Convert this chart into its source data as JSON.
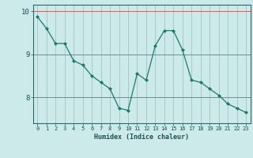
{
  "x": [
    0,
    1,
    2,
    3,
    4,
    5,
    6,
    7,
    8,
    9,
    10,
    11,
    12,
    13,
    14,
    15,
    16,
    17,
    18,
    19,
    20,
    21,
    22,
    23
  ],
  "y": [
    9.87,
    9.6,
    9.25,
    9.25,
    8.85,
    8.75,
    8.5,
    8.35,
    8.2,
    7.75,
    7.7,
    8.55,
    8.4,
    9.2,
    9.55,
    9.55,
    9.1,
    8.4,
    8.35,
    8.2,
    8.05,
    7.85,
    7.75,
    7.65
  ],
  "xlabel": "Humidex (Indice chaleur)",
  "ylabel": "",
  "ylim": [
    7.4,
    10.15
  ],
  "xlim": [
    -0.5,
    23.5
  ],
  "yticks": [
    8,
    9,
    10
  ],
  "xticks": [
    0,
    1,
    2,
    3,
    4,
    5,
    6,
    7,
    8,
    9,
    10,
    11,
    12,
    13,
    14,
    15,
    16,
    17,
    18,
    19,
    20,
    21,
    22,
    23
  ],
  "line_color": "#1a7a6e",
  "marker_color": "#1a7a6e",
  "bg_color": "#cceaea",
  "grid_color_h": "#cc6666",
  "grid_color_v": "#99bbbb",
  "axis_color": "#336666",
  "label_color": "#1a5050",
  "xlabel_fontsize": 6.0,
  "ylabel_fontsize": 7.0,
  "xtick_fontsize": 5.0,
  "ytick_fontsize": 6.5
}
